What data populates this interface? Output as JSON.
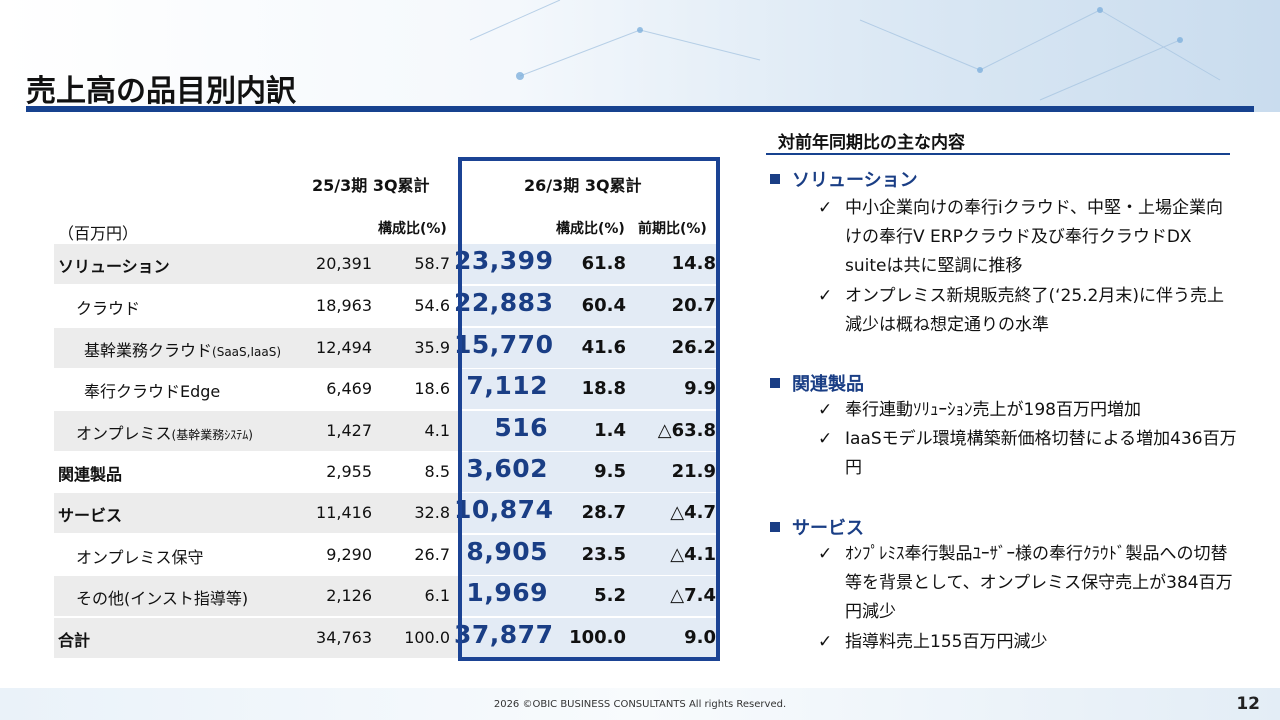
{
  "title": "売上高の品目別内訳",
  "table": {
    "col_group_prev": "25/3期 3Q累計",
    "col_group_curr": "26/3期 3Q累計",
    "unit_label": "（百万円）",
    "prev_ratio_header": "構成比(%)",
    "curr_ratio_header": "構成比(%)",
    "curr_yoy_header": "前期比(%)",
    "rows": [
      {
        "label": "ソリューション",
        "label_small": "",
        "prev_amount": "20,391",
        "prev_ratio": "58.7",
        "curr_amount": "23,399",
        "curr_ratio": "61.8",
        "curr_yoy": "14.8"
      },
      {
        "label": "クラウド",
        "label_small": "",
        "prev_amount": "18,963",
        "prev_ratio": "54.6",
        "curr_amount": "22,883",
        "curr_ratio": "60.4",
        "curr_yoy": "20.7"
      },
      {
        "label": "基幹業務クラウド",
        "label_small": "(SaaS,IaaS)",
        "prev_amount": "12,494",
        "prev_ratio": "35.9",
        "curr_amount": "15,770",
        "curr_ratio": "41.6",
        "curr_yoy": "26.2"
      },
      {
        "label": "奉行クラウドEdge",
        "label_small": "",
        "prev_amount": "6,469",
        "prev_ratio": "18.6",
        "curr_amount": "7,112",
        "curr_ratio": "18.8",
        "curr_yoy": "9.9"
      },
      {
        "label": "オンプレミス",
        "label_small": "(基幹業務ｼｽﾃﾑ)",
        "prev_amount": "1,427",
        "prev_ratio": "4.1",
        "curr_amount": "516",
        "curr_ratio": "1.4",
        "curr_yoy": "△63.8"
      },
      {
        "label": "関連製品",
        "label_small": "",
        "prev_amount": "2,955",
        "prev_ratio": "8.5",
        "curr_amount": "3,602",
        "curr_ratio": "9.5",
        "curr_yoy": "21.9"
      },
      {
        "label": "サービス",
        "label_small": "",
        "prev_amount": "11,416",
        "prev_ratio": "32.8",
        "curr_amount": "10,874",
        "curr_ratio": "28.7",
        "curr_yoy": "△4.7"
      },
      {
        "label": "オンプレミス保守",
        "label_small": "",
        "prev_amount": "9,290",
        "prev_ratio": "26.7",
        "curr_amount": "8,905",
        "curr_ratio": "23.5",
        "curr_yoy": "△4.1"
      },
      {
        "label": "その他(インスト指導等)",
        "label_small": "",
        "prev_amount": "2,126",
        "prev_ratio": "6.1",
        "curr_amount": "1,969",
        "curr_ratio": "5.2",
        "curr_yoy": "△7.4"
      },
      {
        "label": "合計",
        "label_small": "",
        "prev_amount": "34,763",
        "prev_ratio": "100.0",
        "curr_amount": "37,877",
        "curr_ratio": "100.0",
        "curr_yoy": "9.0"
      }
    ]
  },
  "right_panel": {
    "heading": "対前年同期比の主な内容",
    "sections": [
      {
        "title": "ソリューション",
        "items": [
          "中小企業向けの奉行iクラウド、中堅・上場企業向けの奉行V ERPクラウド及び奉行クラウドDX suiteは共に堅調に推移",
          "オンプレミス新規販売終了(‘25.2月末)に伴う売上減少は概ね想定通りの水準"
        ]
      },
      {
        "title": "関連製品",
        "items": [
          "奉行連動ｿﾘｭｰｼｮﾝ売上が198百万円増加",
          "IaaSモデル環境構築新価格切替による増加436百万円"
        ]
      },
      {
        "title": "サービス",
        "items": [
          "ｵﾝﾌﾟﾚﾐｽ奉行製品ﾕｰｻﾞｰ様の奉行ｸﾗｳﾄﾞ製品への切替等を背景として、オンプレミス保守売上が384百万円減少",
          "指導料売上155百万円減少"
        ]
      }
    ]
  },
  "footer": {
    "copyright": "2026 ©OBIC BUSINESS CONSULTANTS All rights Reserved.",
    "page_number": "12"
  },
  "colors": {
    "accent": "#17428f",
    "value_blue": "#1a3e85",
    "row_shade": "#ececec",
    "highlight_fill": "#e3ebf5"
  },
  "icons": {
    "bullet": "square-bullet-icon",
    "check": "check-icon"
  }
}
